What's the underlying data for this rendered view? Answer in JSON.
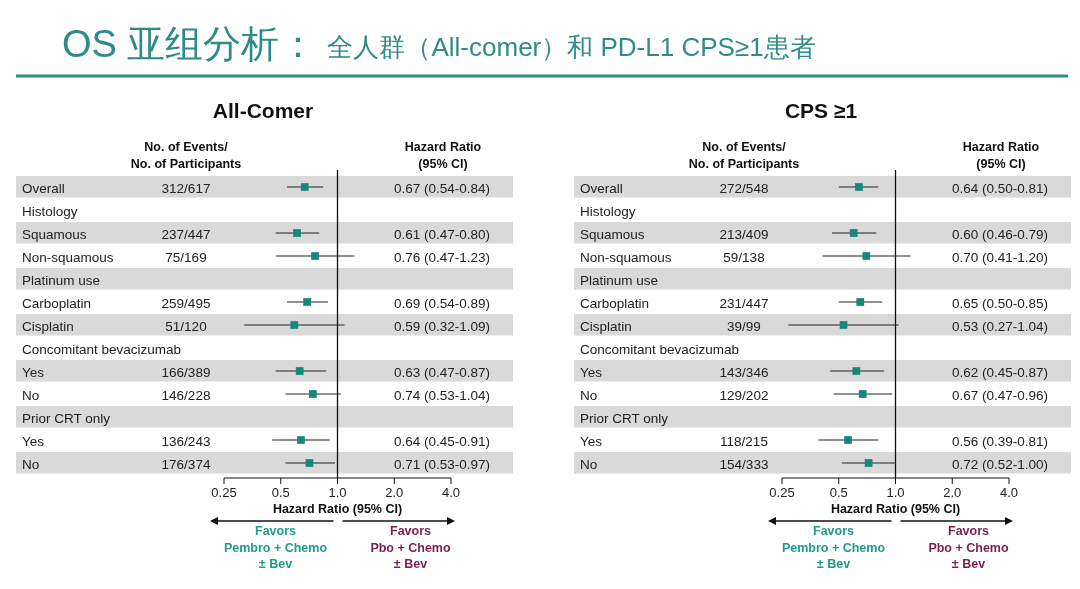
{
  "chart_data": [
    {
      "type": "other",
      "title": "OS 亚组分析：",
      "subtitle": "全人群（All-comer）和 PD-L1 CPS≥1患者"
    },
    {
      "type": "scatter",
      "orientation": "horizontal",
      "title": "All-Comer",
      "xlabel": "Hazard Ratio (95% CI)",
      "categories": [
        "Overall",
        "Histology",
        "Squamous",
        "Non-squamous",
        "Platinum use",
        "Carboplatin",
        "Cisplatin",
        "Concomitant bevacizumab",
        "Yes",
        "No",
        "Prior CRT only",
        "Yes",
        "No"
      ],
      "y2_categories": [
        "0.67 (0.54-0.84)",
        null,
        "0.61 (0.47-0.80)",
        "0.76 (0.47-1.23)",
        null,
        "0.69 (0.54-0.89)",
        "0.59 (0.32-1.09)",
        null,
        "0.63 (0.47-0.87)",
        "0.74 (0.53-1.04)",
        null,
        "0.64 (0.45-0.91)",
        "0.71 (0.53-0.97)"
      ],
      "values": [
        0.67,
        null,
        0.61,
        0.76,
        null,
        0.69,
        0.59,
        null,
        0.63,
        0.74,
        null,
        0.64,
        0.71
      ],
      "errors": [
        [
          0.54,
          0.84
        ],
        null,
        [
          0.47,
          0.8
        ],
        [
          0.47,
          1.23
        ],
        null,
        [
          0.54,
          0.89
        ],
        [
          0.32,
          1.09
        ],
        null,
        [
          0.47,
          0.87
        ],
        [
          0.53,
          1.04
        ],
        null,
        [
          0.45,
          0.91
        ],
        [
          0.53,
          0.97
        ]
      ],
      "color": "#16877b",
      "marker": "square",
      "log": "x",
      "xlim": [
        0.25,
        4
      ],
      "xticks": [
        {
          "value": 0.25,
          "label": "0.25"
        },
        {
          "value": 0.5,
          "label": "0.5"
        },
        {
          "value": 1,
          "label": "1.0"
        },
        {
          "value": 2,
          "label": "2.0"
        },
        {
          "value": 4,
          "label": "4.0"
        }
      ],
      "ref_lines": [
        {
          "axis": "x",
          "value": 1
        }
      ],
      "annotations": [
        "No. of  Events/\nNo. of Participants",
        "Hazard Ratio\n(95% CI)",
        "Favors\nPembro + Chemo\n± Bev",
        "Favors\nPbo + Chemo\n± Bev",
        "312/617",
        "237/447",
        "75/169",
        "259/495",
        "51/120",
        "166/389",
        "146/228",
        "136/243",
        "176/374"
      ]
    },
    {
      "type": "scatter",
      "orientation": "horizontal",
      "title": "CPS ≥1",
      "xlabel": "Hazard Ratio (95% CI)",
      "categories": [
        "Overall",
        "Histology",
        "Squamous",
        "Non-squamous",
        "Platinum use",
        "Carboplatin",
        "Cisplatin",
        "Concomitant bevacizumab",
        "Yes",
        "No",
        "Prior CRT only",
        "Yes",
        "No"
      ],
      "y2_categories": [
        "0.64 (0.50-0.81)",
        null,
        "0.60 (0.46-0.79)",
        "0.70 (0.41-1.20)",
        null,
        "0.65 (0.50-0.85)",
        "0.53 (0.27-1.04)",
        null,
        "0.62 (0.45-0.87)",
        "0.67 (0.47-0.96)",
        null,
        "0.56 (0.39-0.81)",
        "0.72 (0.52-1.00)"
      ],
      "values": [
        0.64,
        null,
        0.6,
        0.7,
        null,
        0.65,
        0.53,
        null,
        0.62,
        0.67,
        null,
        0.56,
        0.72
      ],
      "errors": [
        [
          0.5,
          0.81
        ],
        null,
        [
          0.46,
          0.79
        ],
        [
          0.41,
          1.2
        ],
        null,
        [
          0.5,
          0.85
        ],
        [
          0.27,
          1.04
        ],
        null,
        [
          0.45,
          0.87
        ],
        [
          0.47,
          0.96
        ],
        null,
        [
          0.39,
          0.81
        ],
        [
          0.52,
          1.0
        ]
      ],
      "color": "#16877b",
      "marker": "square",
      "log": "x",
      "xlim": [
        0.25,
        4
      ],
      "xticks": [
        {
          "value": 0.25,
          "label": "0.25"
        },
        {
          "value": 0.5,
          "label": "0.5"
        },
        {
          "value": 1,
          "label": "1.0"
        },
        {
          "value": 2,
          "label": "2.0"
        },
        {
          "value": 4,
          "label": "4.0"
        }
      ],
      "ref_lines": [
        {
          "axis": "x",
          "value": 1
        }
      ],
      "annotations": [
        "No. of  Events/\nNo. of Participants",
        "Hazard Ratio\n(95% CI)",
        "Favors\nPembro + Chemo\n± Bev",
        "Favors\nPbo + Chemo\n± Bev",
        "272/548",
        "213/409",
        "59/138",
        "231/447",
        "39/99",
        "143/346",
        "129/202",
        "118/215",
        "154/333"
      ]
    }
  ]
}
